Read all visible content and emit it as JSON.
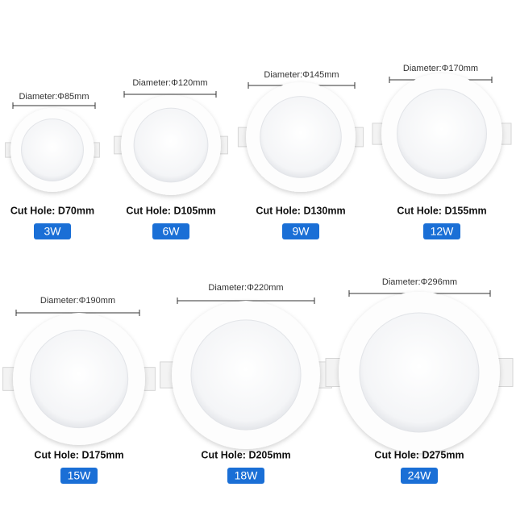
{
  "items": [
    {
      "diameter": "Diameter:Φ85mm",
      "cut_hole": "Cut Hole: D70mm",
      "wattage": "3W"
    },
    {
      "diameter": "Diameter:Φ120mm",
      "cut_hole": "Cut Hole: D105mm",
      "wattage": "6W"
    },
    {
      "diameter": "Diameter:Φ145mm",
      "cut_hole": "Cut Hole: D130mm",
      "wattage": "9W"
    },
    {
      "diameter": "Diameter:Φ170mm",
      "cut_hole": "Cut Hole: D155mm",
      "wattage": "12W"
    },
    {
      "diameter": "Diameter:Φ190mm",
      "cut_hole": "Cut Hole: D175mm",
      "wattage": "15W"
    },
    {
      "diameter": "Diameter:Φ220mm",
      "cut_hole": "Cut Hole: D205mm",
      "wattage": "18W"
    },
    {
      "diameter": "Diameter:Φ296mm",
      "cut_hole": "Cut Hole: D275mm",
      "wattage": "24W"
    }
  ]
}
